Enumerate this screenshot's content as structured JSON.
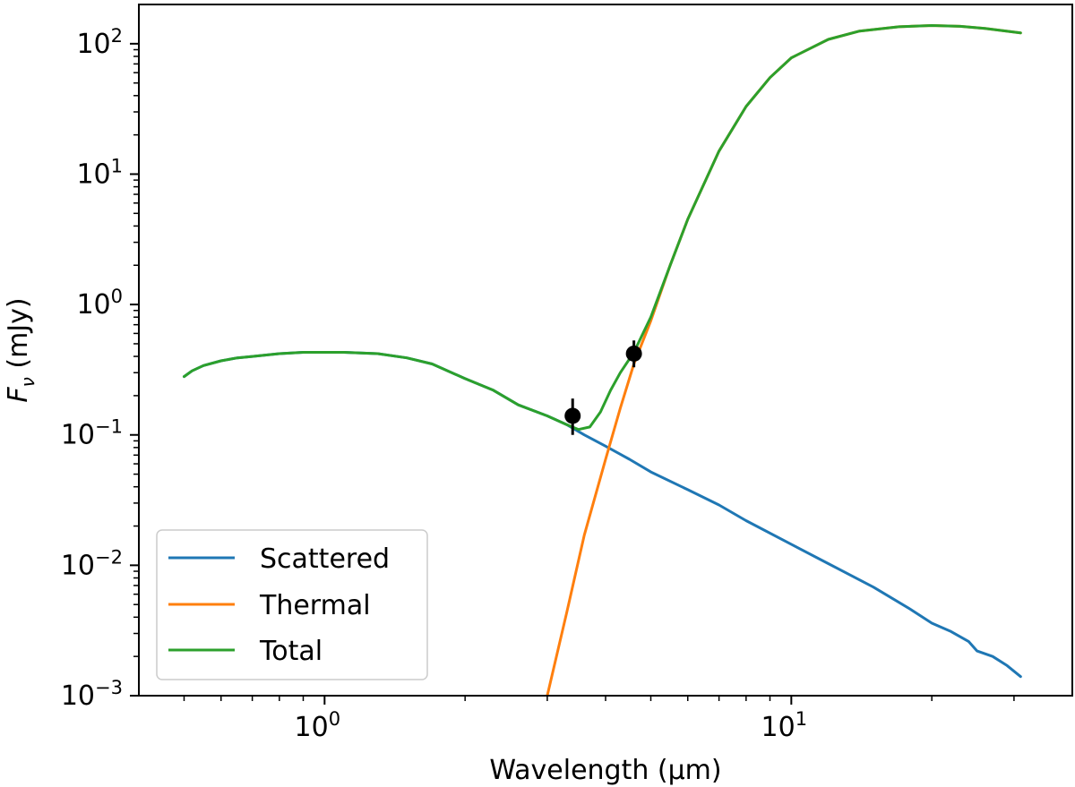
{
  "chart_data": {
    "type": "line",
    "xscale": "log",
    "yscale": "log",
    "xlabel": "Wavelength (µm)",
    "ylabel_main": "F",
    "ylabel_sub": "ν",
    "ylabel_unit": " (mJy)",
    "xlim": [
      0.4,
      40
    ],
    "ylim": [
      0.001,
      200
    ],
    "x_ticks": [
      {
        "value": 1,
        "base": "10",
        "exp": "0"
      },
      {
        "value": 10,
        "base": "10",
        "exp": "1"
      }
    ],
    "y_ticks": [
      {
        "value": 0.001,
        "base": "10",
        "exp": "−3"
      },
      {
        "value": 0.01,
        "base": "10",
        "exp": "−2"
      },
      {
        "value": 0.1,
        "base": "10",
        "exp": "−1"
      },
      {
        "value": 1,
        "base": "10",
        "exp": "0"
      },
      {
        "value": 10,
        "base": "10",
        "exp": "1"
      },
      {
        "value": 100,
        "base": "10",
        "exp": "2"
      }
    ],
    "legend_position": "lower-left",
    "series": [
      {
        "name": "Scattered",
        "color": "#1f77b4",
        "points": [
          [
            0.5,
            0.28
          ],
          [
            0.52,
            0.31
          ],
          [
            0.55,
            0.34
          ],
          [
            0.6,
            0.37
          ],
          [
            0.65,
            0.39
          ],
          [
            0.7,
            0.4
          ],
          [
            0.8,
            0.42
          ],
          [
            0.9,
            0.43
          ],
          [
            1.0,
            0.43
          ],
          [
            1.1,
            0.43
          ],
          [
            1.3,
            0.42
          ],
          [
            1.5,
            0.39
          ],
          [
            1.7,
            0.35
          ],
          [
            2.0,
            0.27
          ],
          [
            2.3,
            0.22
          ],
          [
            2.6,
            0.17
          ],
          [
            3.0,
            0.14
          ],
          [
            3.3,
            0.12
          ],
          [
            3.6,
            0.1
          ],
          [
            4.0,
            0.082
          ],
          [
            4.5,
            0.065
          ],
          [
            5.0,
            0.052
          ],
          [
            6.0,
            0.038
          ],
          [
            7.0,
            0.029
          ],
          [
            8.0,
            0.022
          ],
          [
            10.0,
            0.0145
          ],
          [
            12.0,
            0.0103
          ],
          [
            15.0,
            0.0068
          ],
          [
            18.0,
            0.0046
          ],
          [
            20.0,
            0.0036
          ],
          [
            22.0,
            0.0031
          ],
          [
            24.0,
            0.0026
          ],
          [
            25.0,
            0.0022
          ],
          [
            27.0,
            0.002
          ],
          [
            29.0,
            0.0017
          ],
          [
            31.0,
            0.0014
          ]
        ]
      },
      {
        "name": "Thermal",
        "color": "#ff7f0e",
        "points": [
          [
            3.0,
            0.001
          ],
          [
            3.3,
            0.0043
          ],
          [
            3.6,
            0.017
          ],
          [
            4.0,
            0.065
          ],
          [
            4.3,
            0.16
          ],
          [
            4.6,
            0.35
          ],
          [
            5.0,
            0.75
          ],
          [
            5.5,
            2.0
          ],
          [
            6.0,
            4.5
          ],
          [
            7.0,
            15
          ],
          [
            8.0,
            33
          ],
          [
            9.0,
            55
          ],
          [
            10.0,
            78
          ],
          [
            12.0,
            108
          ],
          [
            14.0,
            125
          ],
          [
            17.0,
            135
          ],
          [
            20.0,
            138
          ],
          [
            23.0,
            136
          ],
          [
            26.0,
            131
          ],
          [
            31.0,
            121
          ]
        ]
      },
      {
        "name": "Total",
        "color": "#2ca02c",
        "points": [
          [
            0.5,
            0.28
          ],
          [
            0.52,
            0.31
          ],
          [
            0.55,
            0.34
          ],
          [
            0.6,
            0.37
          ],
          [
            0.65,
            0.39
          ],
          [
            0.7,
            0.4
          ],
          [
            0.8,
            0.42
          ],
          [
            0.9,
            0.43
          ],
          [
            1.0,
            0.43
          ],
          [
            1.1,
            0.43
          ],
          [
            1.3,
            0.42
          ],
          [
            1.5,
            0.39
          ],
          [
            1.7,
            0.35
          ],
          [
            2.0,
            0.27
          ],
          [
            2.3,
            0.22
          ],
          [
            2.6,
            0.17
          ],
          [
            3.0,
            0.14
          ],
          [
            3.3,
            0.12
          ],
          [
            3.5,
            0.11
          ],
          [
            3.7,
            0.115
          ],
          [
            3.9,
            0.15
          ],
          [
            4.1,
            0.22
          ],
          [
            4.3,
            0.3
          ],
          [
            4.6,
            0.43
          ],
          [
            5.0,
            0.8
          ],
          [
            5.5,
            2.0
          ],
          [
            6.0,
            4.5
          ],
          [
            7.0,
            15
          ],
          [
            8.0,
            33
          ],
          [
            9.0,
            55
          ],
          [
            10.0,
            78
          ],
          [
            12.0,
            108
          ],
          [
            14.0,
            125
          ],
          [
            17.0,
            135
          ],
          [
            20.0,
            138
          ],
          [
            23.0,
            136
          ],
          [
            26.0,
            131
          ],
          [
            31.0,
            121
          ]
        ]
      }
    ],
    "observations": [
      {
        "x": 3.4,
        "y": 0.14,
        "ylow": 0.1,
        "yhigh": 0.19
      },
      {
        "x": 4.6,
        "y": 0.42,
        "ylow": 0.33,
        "yhigh": 0.53
      }
    ]
  }
}
